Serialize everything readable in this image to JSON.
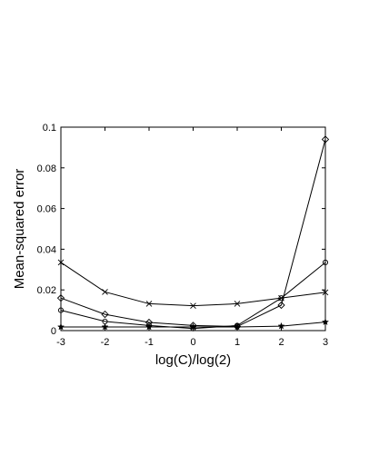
{
  "chart_data": {
    "type": "line",
    "xlabel": "log(C)/log(2)",
    "ylabel": "Mean-squared error",
    "x": [
      -3,
      -2,
      -1,
      0,
      1,
      2,
      3
    ],
    "xlim": [
      -3,
      3
    ],
    "ylim": [
      0,
      0.1
    ],
    "xticks": [
      "-3",
      "-2",
      "-1",
      "0",
      "1",
      "2",
      "3"
    ],
    "yticks": [
      "0",
      "0.02",
      "0.04",
      "0.06",
      "0.08",
      "0.1"
    ],
    "ytick_values": [
      0,
      0.02,
      0.04,
      0.06,
      0.08,
      0.1
    ],
    "grid": false,
    "series": [
      {
        "marker": "x",
        "values": [
          0.0335,
          0.019,
          0.0132,
          0.0122,
          0.0132,
          0.016,
          0.0188
        ]
      },
      {
        "marker": "diamond",
        "values": [
          0.016,
          0.008,
          0.004,
          0.0025,
          0.002,
          0.0125,
          0.094
        ]
      },
      {
        "marker": "circle",
        "values": [
          0.01,
          0.0045,
          0.0025,
          0.001,
          0.0025,
          0.016,
          0.0335
        ]
      },
      {
        "marker": "star",
        "values": [
          0.0018,
          0.0018,
          0.0018,
          0.0018,
          0.0018,
          0.0022,
          0.0042
        ]
      }
    ]
  }
}
